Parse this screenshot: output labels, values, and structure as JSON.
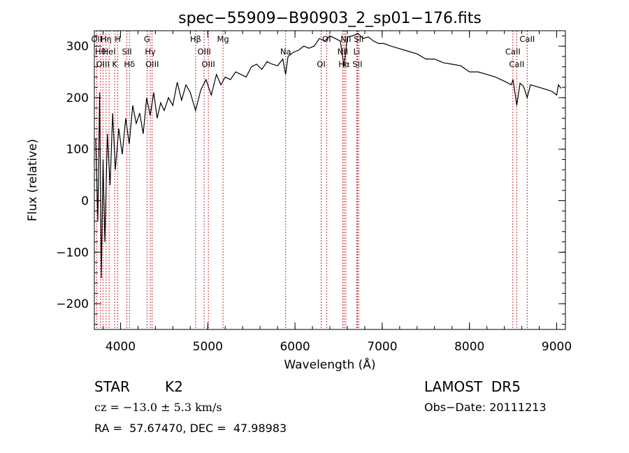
{
  "chart_data": {
    "type": "line",
    "title": "spec−55909−B90903_2_sp01−176.fits",
    "xlabel": "Wavelength (Å)",
    "ylabel": "Flux (relative)",
    "xlim": [
      3700,
      9100
    ],
    "ylim": [
      -250,
      330
    ],
    "x_ticks": [
      {
        "value": 4000,
        "label": "4000"
      },
      {
        "value": 5000,
        "label": "5000"
      },
      {
        "value": 6000,
        "label": "6000"
      },
      {
        "value": 7000,
        "label": "7000"
      },
      {
        "value": 8000,
        "label": "8000"
      },
      {
        "value": 9000,
        "label": "9000"
      }
    ],
    "y_ticks": [
      {
        "value": -200,
        "label": "−200"
      },
      {
        "value": -100,
        "label": "−100"
      },
      {
        "value": 0,
        "label": "0"
      },
      {
        "value": 100,
        "label": "100"
      },
      {
        "value": 200,
        "label": "200"
      },
      {
        "value": 300,
        "label": "300"
      }
    ],
    "series": [
      {
        "x": [
          3715,
          3740,
          3760,
          3780,
          3800,
          3820,
          3850,
          3880,
          3910,
          3940,
          3980,
          4020,
          4060,
          4100,
          4140,
          4180,
          4220,
          4260,
          4300,
          4340,
          4380,
          4420,
          4460,
          4500,
          4550,
          4600,
          4650,
          4700,
          4750,
          4800,
          4860,
          4920,
          4980,
          5040,
          5100,
          5150,
          5200,
          5260,
          5320,
          5380,
          5440,
          5500,
          5560,
          5620,
          5680,
          5740,
          5800,
          5860,
          5893,
          5920,
          5980,
          6040,
          6100,
          6160,
          6220,
          6280,
          6340,
          6400,
          6460,
          6520,
          6563,
          6600,
          6660,
          6720,
          6780,
          6840,
          6900,
          6960,
          7020,
          7100,
          7200,
          7300,
          7400,
          7500,
          7600,
          7700,
          7800,
          7900,
          8000,
          8100,
          8200,
          8300,
          8400,
          8480,
          8500,
          8542,
          8580,
          8620,
          8662,
          8700,
          8800,
          8900,
          8950,
          9000,
          9020,
          9050
        ],
        "y": [
          120,
          -40,
          210,
          -150,
          80,
          -80,
          130,
          30,
          170,
          60,
          140,
          90,
          160,
          110,
          185,
          150,
          170,
          130,
          200,
          165,
          210,
          160,
          190,
          175,
          200,
          185,
          230,
          195,
          225,
          210,
          175,
          215,
          235,
          205,
          245,
          225,
          240,
          235,
          250,
          245,
          240,
          260,
          265,
          255,
          270,
          265,
          262,
          275,
          245,
          280,
          288,
          292,
          300,
          296,
          300,
          315,
          310,
          320,
          315,
          310,
          260,
          318,
          320,
          325,
          315,
          318,
          310,
          305,
          305,
          300,
          295,
          290,
          285,
          275,
          275,
          268,
          265,
          262,
          250,
          250,
          245,
          240,
          232,
          225,
          235,
          185,
          228,
          222,
          200,
          225,
          220,
          215,
          212,
          205,
          225,
          218
        ]
      }
    ],
    "lines": [
      {
        "x": 3727,
        "label": "OII"
      },
      {
        "x": 3770,
        "label": "Hθ"
      },
      {
        "x": 3798,
        "label": "OIII"
      },
      {
        "x": 3835,
        "label": "Hη"
      },
      {
        "x": 3869,
        "label": "HeI"
      },
      {
        "x": 3934,
        "label": "K"
      },
      {
        "x": 3969,
        "label": "H"
      },
      {
        "x": 4073,
        "label": "SII"
      },
      {
        "x": 4102,
        "label": "Hδ"
      },
      {
        "x": 4304,
        "label": "G"
      },
      {
        "x": 4341,
        "label": "Hγ"
      },
      {
        "x": 4363,
        "label": "OIII"
      },
      {
        "x": 4861,
        "label": "Hβ"
      },
      {
        "x": 4959,
        "label": "OIII"
      },
      {
        "x": 5007,
        "label": "OIII"
      },
      {
        "x": 5175,
        "label": "Mg"
      },
      {
        "x": 5893,
        "label": "Na"
      },
      {
        "x": 6300,
        "label": "OI"
      },
      {
        "x": 6363,
        "label": "OI"
      },
      {
        "x": 6548,
        "label": "NII"
      },
      {
        "x": 6563,
        "label": "Hα"
      },
      {
        "x": 6583,
        "label": "NII"
      },
      {
        "x": 6708,
        "label": "Li"
      },
      {
        "x": 6716,
        "label": "SII"
      },
      {
        "x": 6731,
        "label": "SII"
      },
      {
        "x": 8498,
        "label": "CaII"
      },
      {
        "x": 8542,
        "label": "CaII"
      },
      {
        "x": 8662,
        "label": "CaII"
      }
    ]
  },
  "info": {
    "object_type": "STAR",
    "subclass": "K2",
    "survey": "LAMOST  DR5",
    "cz": "cz = −13.0 ± 5.3 km/s",
    "obs_date": "Obs−Date: 20111213",
    "coords": "RA =  57.67470, DEC =  47.98983"
  },
  "colors": {
    "spectrum": "#000000",
    "line_marker": "#c8141e"
  }
}
